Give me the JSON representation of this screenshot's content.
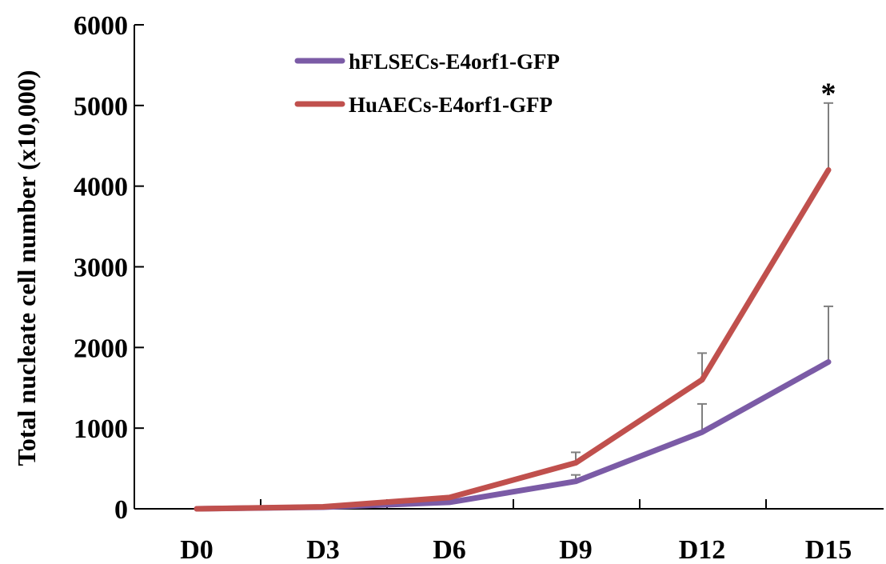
{
  "chart_data": {
    "type": "line",
    "title": "",
    "xlabel": "",
    "ylabel": "Total nucleate cell number (x10,000)",
    "categories": [
      "D0",
      "D3",
      "D6",
      "D9",
      "D12",
      "D15"
    ],
    "ylim": [
      0,
      6000
    ],
    "yticks": [
      "0",
      "1000",
      "2000",
      "3000",
      "4000",
      "5000",
      "6000"
    ],
    "grid": false,
    "legend_position": "top-center",
    "series": [
      {
        "name": "hFLSECs-E4orf1-GFP",
        "color": "#7b5ba6",
        "values": [
          0,
          20,
          80,
          340,
          950,
          1820
        ],
        "error_upper": [
          0,
          0,
          0,
          420,
          1300,
          2510
        ]
      },
      {
        "name": "HuAECs-E4orf1-GFP",
        "color": "#c0504d",
        "values": [
          0,
          25,
          140,
          570,
          1600,
          4200
        ],
        "error_upper": [
          0,
          0,
          0,
          700,
          1930,
          5030
        ]
      }
    ],
    "annotations": [
      {
        "text": "*",
        "category": "D15",
        "value": 5300
      }
    ]
  }
}
